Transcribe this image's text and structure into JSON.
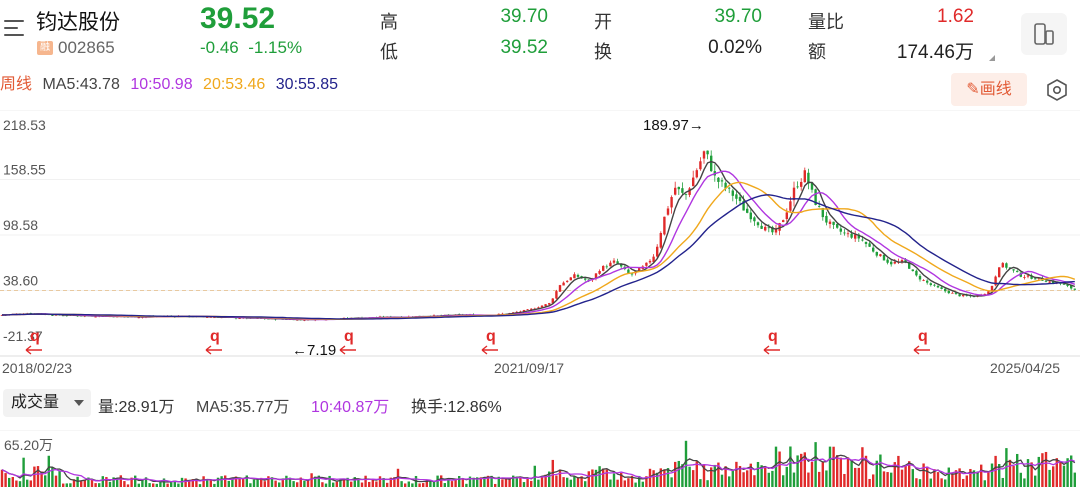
{
  "stock": {
    "name": "钧达股份",
    "badge": "融",
    "code": "002865",
    "price": "39.52",
    "change_abs": "-0.46",
    "change_pct": "-1.15%"
  },
  "quote": {
    "high_label": "高",
    "high_value": "39.70",
    "low_label": "低",
    "low_value": "39.52",
    "open_label": "开",
    "open_value": "39.70",
    "turnover_label": "换",
    "turnover_value": "0.02%",
    "volume_ratio_label": "量比",
    "volume_ratio_value": "1.62",
    "amount_label": "额",
    "amount_value": "174.46万"
  },
  "period": "周线",
  "ma_labels": {
    "ma5": "MA5:43.78",
    "ma10": "10:50.98",
    "ma20": "20:53.46",
    "ma30": "30:55.85"
  },
  "draw_button": "画线",
  "volume_panel": {
    "dropdown": "成交量",
    "vol": "量:28.91万",
    "ma5": "MA5:35.77万",
    "ma10": "10:40.87万",
    "turnover": "换手:12.86%",
    "axis_label": "65.20万"
  },
  "dates": {
    "start": "2018/02/23",
    "mid": "2021/09/17",
    "end": "2025/04/25"
  },
  "colors": {
    "up": "#e02a2a",
    "down": "#1f9e3a",
    "ma5": "#444444",
    "ma10": "#b036e0",
    "ma20": "#f0a81c",
    "ma30": "#23238c",
    "accent": "#e25a35"
  },
  "chart_data": {
    "type": "candlestick",
    "period": "weekly",
    "y_ticks": [
      "218.53",
      "158.55",
      "98.58",
      "38.60",
      "-21.37"
    ],
    "ylim": [
      -21.37,
      218.53
    ],
    "reference_price": "38.60",
    "annotations": {
      "max_label": "189.97→",
      "max_value": 189.97,
      "min_label": "←7.19",
      "min_value": 7.19
    },
    "x_labels": [
      "2018/02/23",
      "2021/09/17",
      "2025/04/25"
    ],
    "q_markers": [
      "q",
      "q",
      "q",
      "q",
      "q",
      "q"
    ],
    "close_path": [
      [
        0,
        12
      ],
      [
        30,
        14
      ],
      [
        60,
        12
      ],
      [
        100,
        11
      ],
      [
        140,
        10
      ],
      [
        180,
        11
      ],
      [
        210,
        10
      ],
      [
        240,
        9
      ],
      [
        270,
        8
      ],
      [
        300,
        7.19
      ],
      [
        330,
        8
      ],
      [
        360,
        9
      ],
      [
        400,
        10
      ],
      [
        430,
        11
      ],
      [
        460,
        12
      ],
      [
        490,
        12
      ],
      [
        510,
        14
      ],
      [
        530,
        18
      ],
      [
        550,
        25
      ],
      [
        560,
        45
      ],
      [
        575,
        55
      ],
      [
        590,
        48
      ],
      [
        600,
        62
      ],
      [
        615,
        70
      ],
      [
        630,
        55
      ],
      [
        645,
        65
      ],
      [
        655,
        78
      ],
      [
        665,
        120
      ],
      [
        675,
        150
      ],
      [
        685,
        140
      ],
      [
        695,
        165
      ],
      [
        705,
        189.97
      ],
      [
        715,
        160
      ],
      [
        725,
        150
      ],
      [
        735,
        140
      ],
      [
        745,
        125
      ],
      [
        755,
        115
      ],
      [
        765,
        105
      ],
      [
        775,
        100
      ],
      [
        785,
        120
      ],
      [
        795,
        150
      ],
      [
        805,
        165
      ],
      [
        815,
        135
      ],
      [
        825,
        115
      ],
      [
        835,
        105
      ],
      [
        845,
        100
      ],
      [
        860,
        95
      ],
      [
        875,
        80
      ],
      [
        890,
        68
      ],
      [
        905,
        70
      ],
      [
        915,
        55
      ],
      [
        930,
        45
      ],
      [
        945,
        38
      ],
      [
        960,
        33
      ],
      [
        975,
        32
      ],
      [
        990,
        38
      ],
      [
        1000,
        68
      ],
      [
        1010,
        62
      ],
      [
        1020,
        55
      ],
      [
        1035,
        52
      ],
      [
        1050,
        48
      ],
      [
        1060,
        46
      ],
      [
        1075,
        39.52
      ]
    ],
    "ma_series": [
      {
        "name": "MA5",
        "value": 43.78
      },
      {
        "name": "MA10",
        "value": 50.98
      },
      {
        "name": "MA20",
        "value": 53.46
      },
      {
        "name": "MA30",
        "value": 55.85
      }
    ],
    "volume": {
      "max_label": "65.20万",
      "max_value": 652000,
      "last_volume": 289100,
      "ma5": 357700,
      "ma10": 408700
    }
  }
}
